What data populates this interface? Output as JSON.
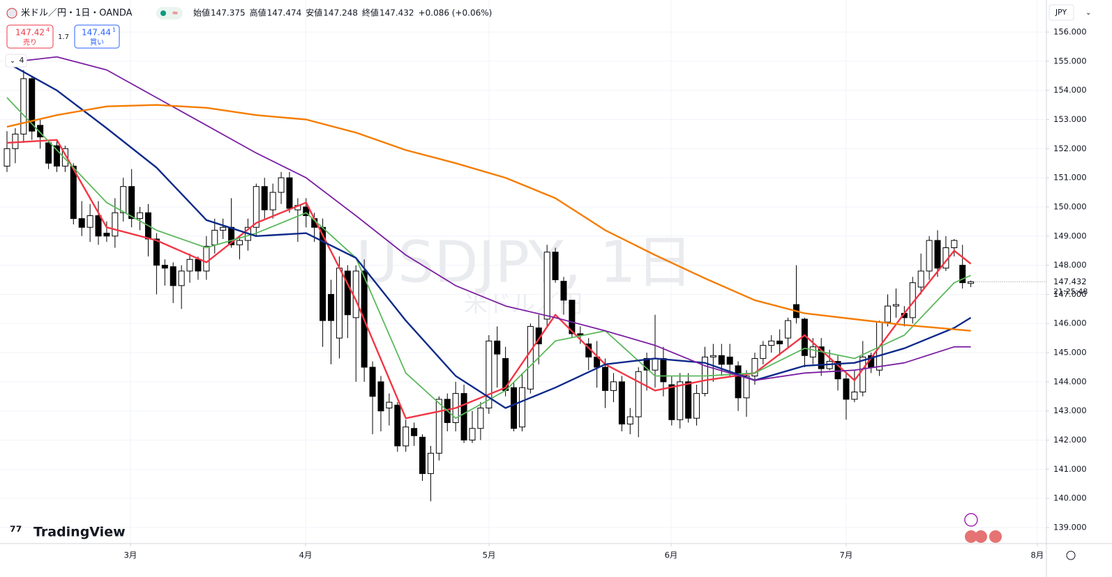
{
  "header": {
    "symbol": "米ドル／円・1日・OANDA",
    "open_label": "始値",
    "high_label": "高値",
    "low_label": "安値",
    "close_label": "終値",
    "change": "+0.086 (+0.06%)",
    "bid": {
      "price": "147.42",
      "pip": "4",
      "label": "売り"
    },
    "spread": "1.7",
    "ask": {
      "price": "147.44",
      "pip": "1",
      "label": "買い"
    },
    "indicator_count": "4",
    "watermark": "USDJPY, 1日",
    "watermark_sub": "米ドル／円",
    "currency": "JPY",
    "countdown": "21:25:48",
    "logo": "TradingView"
  },
  "chart_data": {
    "type": "candlestick",
    "candles": [
      [
        151.4,
        152.6,
        151.2,
        152.0
      ],
      [
        152.0,
        152.7,
        151.5,
        152.5
      ],
      [
        152.5,
        154.7,
        152.2,
        154.4
      ],
      [
        154.4,
        154.5,
        152.3,
        152.6
      ],
      [
        152.8,
        153.0,
        152.0,
        152.4
      ],
      [
        152.2,
        152.3,
        151.3,
        151.5
      ],
      [
        152.1,
        152.3,
        151.2,
        151.4
      ],
      [
        151.4,
        152.1,
        151.2,
        152.0
      ],
      [
        151.4,
        151.5,
        149.4,
        149.6
      ],
      [
        149.6,
        150.2,
        149.0,
        149.3
      ],
      [
        149.3,
        150.1,
        148.8,
        149.7
      ],
      [
        149.7,
        150.2,
        148.7,
        149.0
      ],
      [
        149.1,
        149.5,
        148.8,
        149.0
      ],
      [
        149.0,
        150.3,
        148.6,
        149.8
      ],
      [
        149.8,
        151.0,
        149.5,
        150.7
      ],
      [
        150.7,
        151.3,
        149.3,
        149.6
      ],
      [
        149.6,
        150.0,
        149.2,
        149.8
      ],
      [
        149.8,
        150.1,
        148.3,
        148.9
      ],
      [
        148.9,
        149.1,
        147.0,
        148.0
      ],
      [
        148.0,
        148.2,
        147.3,
        147.9
      ],
      [
        147.95,
        148.1,
        146.7,
        147.3
      ],
      [
        147.3,
        148.0,
        146.5,
        147.8
      ],
      [
        147.8,
        148.4,
        147.4,
        148.2
      ],
      [
        148.2,
        148.3,
        147.5,
        147.8
      ],
      [
        147.8,
        149.0,
        147.5,
        148.65
      ],
      [
        148.7,
        149.6,
        148.4,
        149.2
      ],
      [
        149.2,
        149.6,
        148.9,
        149.3
      ],
      [
        149.3,
        150.3,
        148.6,
        148.7
      ],
      [
        148.7,
        149.0,
        148.2,
        148.85
      ],
      [
        148.85,
        149.6,
        148.5,
        149.3
      ],
      [
        149.3,
        150.8,
        149.0,
        150.7
      ],
      [
        150.7,
        151.0,
        149.6,
        149.9
      ],
      [
        149.9,
        150.8,
        149.6,
        150.5
      ],
      [
        150.5,
        151.2,
        150.1,
        151.0
      ],
      [
        151.0,
        151.2,
        149.8,
        149.95
      ],
      [
        149.9,
        150.3,
        148.8,
        150.05
      ],
      [
        150.0,
        150.3,
        149.3,
        149.7
      ],
      [
        149.6,
        149.8,
        148.8,
        149.3
      ],
      [
        149.3,
        149.6,
        145.2,
        146.1
      ],
      [
        147.0,
        147.5,
        144.6,
        146.1
      ],
      [
        145.5,
        148.3,
        144.8,
        147.9
      ],
      [
        147.8,
        148.0,
        145.5,
        146.3
      ],
      [
        146.2,
        148.0,
        144.0,
        147.8
      ],
      [
        147.8,
        148.2,
        144.0,
        144.5
      ],
      [
        144.5,
        144.7,
        142.2,
        143.5
      ],
      [
        144.0,
        144.2,
        142.3,
        143.0
      ],
      [
        143.1,
        143.6,
        142.5,
        143.3
      ],
      [
        143.2,
        143.3,
        141.6,
        141.8
      ],
      [
        141.8,
        142.7,
        141.6,
        142.45
      ],
      [
        142.4,
        142.6,
        141.8,
        142.15
      ],
      [
        142.1,
        142.2,
        140.6,
        140.85
      ],
      [
        140.85,
        141.8,
        139.9,
        141.55
      ],
      [
        141.55,
        143.5,
        141.3,
        143.4
      ],
      [
        143.4,
        143.6,
        142.3,
        142.6
      ],
      [
        142.6,
        144.0,
        142.3,
        143.6
      ],
      [
        143.6,
        143.9,
        141.9,
        142.0
      ],
      [
        142.0,
        143.0,
        141.9,
        142.4
      ],
      [
        142.4,
        143.3,
        142.0,
        143.1
      ],
      [
        143.1,
        145.6,
        142.9,
        145.4
      ],
      [
        145.4,
        145.9,
        143.8,
        144.95
      ],
      [
        144.8,
        145.2,
        143.5,
        143.7
      ],
      [
        143.8,
        144.0,
        142.3,
        142.4
      ],
      [
        142.45,
        144.3,
        142.3,
        143.8
      ],
      [
        143.75,
        146.0,
        143.6,
        145.9
      ],
      [
        145.85,
        146.3,
        144.6,
        145.3
      ],
      [
        146.15,
        148.7,
        145.9,
        148.45
      ],
      [
        148.45,
        148.6,
        147.4,
        147.5
      ],
      [
        147.45,
        147.6,
        146.3,
        146.8
      ],
      [
        146.8,
        146.8,
        145.5,
        145.65
      ],
      [
        145.65,
        145.9,
        145.3,
        145.6
      ],
      [
        145.3,
        145.5,
        144.4,
        144.85
      ],
      [
        144.85,
        145.4,
        143.8,
        144.5
      ],
      [
        144.5,
        144.8,
        143.1,
        143.7
      ],
      [
        143.7,
        144.3,
        143.3,
        144.0
      ],
      [
        144.0,
        144.2,
        142.3,
        142.55
      ],
      [
        142.55,
        143.1,
        142.2,
        142.8
      ],
      [
        142.8,
        144.5,
        142.1,
        144.35
      ],
      [
        144.8,
        145.0,
        143.7,
        144.4
      ],
      [
        144.4,
        146.3,
        143.8,
        144.8
      ],
      [
        144.8,
        145.2,
        143.5,
        144.0
      ],
      [
        143.9,
        144.2,
        142.5,
        142.7
      ],
      [
        142.7,
        144.3,
        142.4,
        144.0
      ],
      [
        144.0,
        144.3,
        142.6,
        142.75
      ],
      [
        142.75,
        143.9,
        142.5,
        143.6
      ],
      [
        143.6,
        145.2,
        143.5,
        144.85
      ],
      [
        144.85,
        145.3,
        144.0,
        144.9
      ],
      [
        144.9,
        145.3,
        144.2,
        144.6
      ],
      [
        144.85,
        145.3,
        144.2,
        144.6
      ],
      [
        144.55,
        144.7,
        143.0,
        143.45
      ],
      [
        143.45,
        144.4,
        142.8,
        144.2
      ],
      [
        144.2,
        145.0,
        143.9,
        144.8
      ],
      [
        144.8,
        145.4,
        144.6,
        145.25
      ],
      [
        145.25,
        145.6,
        145.0,
        145.4
      ],
      [
        145.4,
        145.8,
        144.9,
        145.3
      ],
      [
        145.5,
        146.2,
        145.2,
        146.1
      ],
      [
        146.65,
        148.0,
        146.0,
        146.2
      ],
      [
        146.15,
        146.2,
        144.5,
        144.9
      ],
      [
        144.85,
        145.5,
        144.6,
        145.2
      ],
      [
        145.2,
        145.5,
        144.2,
        144.45
      ],
      [
        144.45,
        145.1,
        144.4,
        144.7
      ],
      [
        144.7,
        144.9,
        143.7,
        144.1
      ],
      [
        144.1,
        144.3,
        142.7,
        143.4
      ],
      [
        143.4,
        144.4,
        143.3,
        143.65
      ],
      [
        143.65,
        145.4,
        143.5,
        144.85
      ],
      [
        144.9,
        145.0,
        144.3,
        144.5
      ],
      [
        144.4,
        146.1,
        144.2,
        146.05
      ],
      [
        146.05,
        147.0,
        145.9,
        146.6
      ],
      [
        146.6,
        147.2,
        146.2,
        146.65
      ],
      [
        146.35,
        146.6,
        145.9,
        146.2
      ],
      [
        146.2,
        147.6,
        146.0,
        147.4
      ],
      [
        147.25,
        148.4,
        147.0,
        147.8
      ],
      [
        147.8,
        149.0,
        147.5,
        148.85
      ],
      [
        148.85,
        149.2,
        147.6,
        147.9
      ],
      [
        147.9,
        149.0,
        147.8,
        148.6
      ],
      [
        148.6,
        148.9,
        148.3,
        148.85
      ],
      [
        148.0,
        148.7,
        147.2,
        147.4
      ],
      [
        147.375,
        147.474,
        147.248,
        147.432
      ]
    ],
    "up_color": "#ffffff",
    "down_color": "#000000",
    "wick_color": "#000000",
    "series": [
      {
        "color": "#f23645",
        "x": [
          0,
          6,
          12,
          18,
          24,
          30,
          36,
          42,
          48,
          54,
          60,
          66,
          72,
          78,
          84,
          90,
          96,
          102,
          108,
          114,
          116
        ],
        "values": [
          152.2,
          152.3,
          149.3,
          148.85,
          148.1,
          149.45,
          150.15,
          146.8,
          142.75,
          143.1,
          143.8,
          146.3,
          144.6,
          143.7,
          144.05,
          144.3,
          145.6,
          144.05,
          146.35,
          148.5,
          148.05
        ]
      },
      {
        "color": "#5cb85c",
        "x": [
          0,
          6,
          12,
          18,
          24,
          30,
          36,
          42,
          48,
          54,
          60,
          66,
          72,
          78,
          84,
          90,
          96,
          102,
          108,
          114,
          116
        ],
        "values": [
          153.75,
          151.95,
          150.15,
          149.2,
          148.6,
          149.1,
          149.8,
          148.25,
          144.3,
          142.75,
          143.7,
          145.4,
          145.75,
          144.2,
          144.2,
          144.3,
          145.15,
          144.8,
          145.6,
          147.4,
          147.65
        ]
      },
      {
        "color": "#0d2a8a",
        "x": [
          0,
          6,
          12,
          18,
          24,
          30,
          36,
          42,
          48,
          54,
          60,
          66,
          72,
          78,
          84,
          90,
          96,
          102,
          108,
          114,
          116
        ],
        "values": [
          154.95,
          154.0,
          152.7,
          151.35,
          149.55,
          149.0,
          149.1,
          148.25,
          146.1,
          144.2,
          143.1,
          143.8,
          144.6,
          144.8,
          144.65,
          144.05,
          144.55,
          144.65,
          145.15,
          145.85,
          146.2
        ]
      },
      {
        "color": "#7b1fa2",
        "x": [
          0,
          6,
          12,
          18,
          24,
          30,
          36,
          42,
          48,
          54,
          60,
          66,
          72,
          78,
          84,
          90,
          96,
          102,
          108,
          114,
          116
        ],
        "values": [
          154.95,
          155.15,
          154.7,
          153.75,
          152.8,
          151.85,
          151.0,
          149.7,
          148.35,
          147.3,
          146.6,
          146.2,
          145.75,
          145.25,
          144.55,
          144.05,
          144.3,
          144.4,
          144.65,
          145.2,
          145.2
        ]
      },
      {
        "color": "#f57c00",
        "x": [
          0,
          6,
          12,
          18,
          24,
          30,
          36,
          42,
          48,
          54,
          60,
          66,
          72,
          78,
          84,
          90,
          96,
          102,
          108,
          114,
          116
        ],
        "values": [
          152.75,
          153.15,
          153.45,
          153.5,
          153.4,
          153.15,
          153.0,
          152.55,
          151.95,
          151.5,
          151.0,
          150.3,
          149.2,
          148.35,
          147.55,
          146.8,
          146.35,
          146.15,
          145.95,
          145.8,
          145.75
        ]
      }
    ],
    "xlim": [
      -0.84,
      125.1
    ],
    "xticks": [
      {
        "value": 14.86,
        "label": "3月"
      },
      {
        "value": 35.94,
        "label": "4月"
      },
      {
        "value": 58.02,
        "label": "5月"
      },
      {
        "value": 79.93,
        "label": "6月"
      },
      {
        "value": 101.0,
        "label": "7月"
      },
      {
        "value": 124.0,
        "label": "8月"
      }
    ],
    "ylim": [
      138.45,
      157.1
    ],
    "yticks": [
      {
        "value": 139,
        "label": "139.000"
      },
      {
        "value": 140,
        "label": "140.000"
      },
      {
        "value": 141,
        "label": "141.000"
      },
      {
        "value": 142,
        "label": "142.000"
      },
      {
        "value": 143,
        "label": "143.000"
      },
      {
        "value": 144,
        "label": "144.000"
      },
      {
        "value": 145,
        "label": "145.000"
      },
      {
        "value": 146,
        "label": "146.000"
      },
      {
        "value": 147,
        "label": "147.000"
      },
      {
        "value": 148,
        "label": "148.000"
      },
      {
        "value": 149,
        "label": "149.000"
      },
      {
        "value": 150,
        "label": "150.000"
      },
      {
        "value": 151,
        "label": "151.000"
      },
      {
        "value": 152,
        "label": "152.000"
      },
      {
        "value": 153,
        "label": "153.000"
      },
      {
        "value": 154,
        "label": "154.000"
      },
      {
        "value": 155,
        "label": "155.000"
      },
      {
        "value": 156,
        "label": "156.000"
      }
    ],
    "grid": true
  }
}
